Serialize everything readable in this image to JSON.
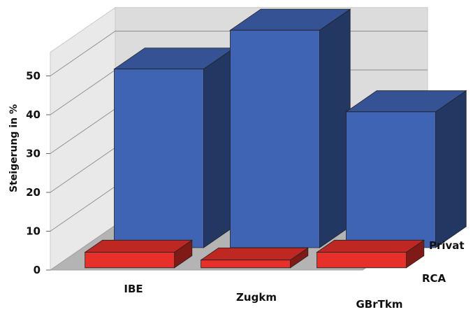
{
  "chart_data": {
    "type": "bar",
    "subtype": "3d-clustered-depth",
    "categories": [
      "IBE",
      "Zugkm",
      "GBrTkm"
    ],
    "series": [
      {
        "name": "RCA",
        "values": [
          4,
          2,
          4
        ],
        "color": "#e8302a"
      },
      {
        "name": "Privat",
        "values": [
          46,
          56,
          35
        ],
        "color": "#3f64b4"
      }
    ],
    "ylabel": "Steigerung in %",
    "ylim": [
      0,
      55
    ],
    "yticks": [
      0,
      10,
      20,
      30,
      40,
      50
    ],
    "grid": true,
    "legend": "none"
  }
}
